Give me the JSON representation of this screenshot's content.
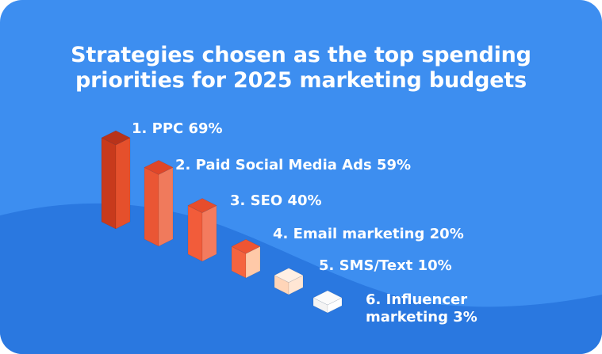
{
  "chart_data": {
    "type": "bar",
    "title": "Strategies chosen as the top spending priorities for 2025 marketing budgets",
    "title_lines": [
      "Strategies chosen as the top spending",
      "priorities for 2025 marketing budgets"
    ],
    "categories": [
      "PPC",
      "Paid Social Media Ads",
      "SEO",
      "Email marketing",
      "SMS/Text",
      "Influencer marketing"
    ],
    "values": [
      69,
      59,
      40,
      20,
      10,
      3
    ],
    "unit": "%",
    "labels": [
      [
        "1. PPC 69%"
      ],
      [
        "2. Paid Social Media Ads 59%"
      ],
      [
        "3. SEO 40%"
      ],
      [
        "4. Email marketing 20%"
      ],
      [
        "5. SMS/Text 10%"
      ],
      [
        "6. Influencer",
        "marketing 3%"
      ]
    ],
    "grid": false,
    "legend": "none"
  },
  "colors": {
    "background": "#3d8ef0",
    "wave": "#2a78e0",
    "text": "#ffffff",
    "bars": [
      {
        "front": "#c83a1c",
        "side": "#e5502c",
        "top": "#b8331a"
      },
      {
        "front": "#ea5634",
        "side": "#f07a5c",
        "top": "#e04628"
      },
      {
        "front": "#f25c3a",
        "side": "#f47b5e",
        "top": "#e64d2c"
      },
      {
        "front": "#f5643f",
        "side": "#ffc9a8",
        "top": "#ee5533"
      },
      {
        "front": "#ffd5b8",
        "side": "#ffe6d4",
        "top": "#fff0e4"
      },
      {
        "front": "#f4f4f4",
        "side": "#ffffff",
        "top": "#fbfbfb"
      }
    ]
  }
}
